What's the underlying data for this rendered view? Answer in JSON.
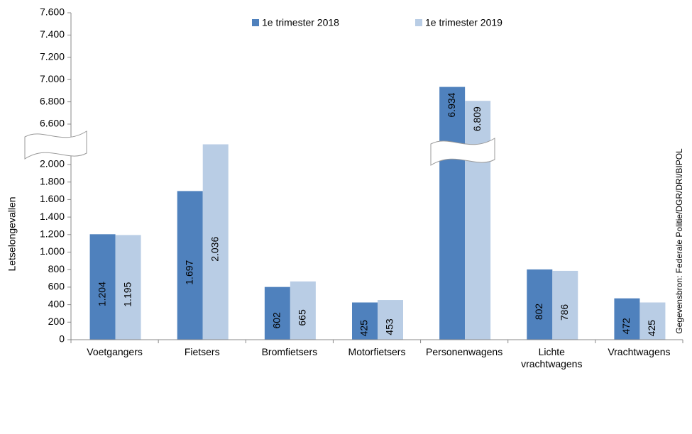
{
  "chart_data": {
    "type": "bar",
    "y_axis_label": "Letselongevallen",
    "source": "Gegevensbron: Federale Politie/DGR/DRI/BIPOL",
    "categories": [
      "Voetgangers",
      "Fietsers",
      "Bromfietsers",
      "Motorfietsers",
      "Personenwagens",
      "Lichte vrachtwagens",
      "Vrachtwagens"
    ],
    "series": [
      {
        "name": "1e trimester 2018",
        "color": "#4f81bd",
        "values": [
          1204,
          1697,
          602,
          425,
          6934,
          802,
          472
        ],
        "value_labels": [
          "1.204",
          "1.697",
          "602",
          "425",
          "6.934",
          "802",
          "472"
        ]
      },
      {
        "name": "1e trimester 2019",
        "color": "#b9cde5",
        "values": [
          1195,
          2036,
          665,
          453,
          6809,
          786,
          425
        ],
        "value_labels": [
          "1.195",
          "2.036",
          "665",
          "453",
          "6.809",
          "786",
          "425"
        ]
      }
    ],
    "ylim": [
      0,
      7600
    ],
    "ybreak": [
      2000,
      6600
    ],
    "yticks": [
      0,
      200,
      400,
      600,
      800,
      {
        "value": 1000,
        "label": "1.000"
      },
      {
        "value": 1200,
        "label": "1.200"
      },
      {
        "value": 1400,
        "label": "1.400"
      },
      {
        "value": 1600,
        "label": "1.600"
      },
      {
        "value": 1800,
        "label": "1.800"
      },
      {
        "value": 2000,
        "label": "2.000"
      },
      {
        "value": 6600,
        "label": "6.600"
      },
      {
        "value": 6800,
        "label": "6.800"
      },
      {
        "value": 7000,
        "label": "7.000"
      },
      {
        "value": 7200,
        "label": "7.200"
      },
      {
        "value": 7400,
        "label": "7.400"
      },
      {
        "value": 7600,
        "label": "7.600"
      }
    ],
    "legend": "top"
  }
}
